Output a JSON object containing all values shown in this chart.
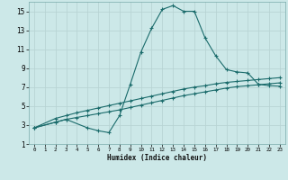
{
  "xlabel": "Humidex (Indice chaleur)",
  "bg_color": "#cce8e8",
  "grid_color": "#b8d4d4",
  "line_color": "#1a6b6b",
  "xlim": [
    -0.5,
    23.5
  ],
  "ylim": [
    1,
    16
  ],
  "xticks": [
    0,
    1,
    2,
    3,
    4,
    5,
    6,
    7,
    8,
    9,
    10,
    11,
    12,
    13,
    14,
    15,
    16,
    17,
    18,
    19,
    20,
    21,
    22,
    23
  ],
  "yticks": [
    1,
    3,
    5,
    7,
    9,
    11,
    13,
    15
  ],
  "series1_x": [
    0,
    2,
    3,
    4,
    5,
    6,
    7,
    8,
    9,
    10,
    11,
    12,
    13,
    14,
    15,
    16,
    17,
    18,
    19,
    20,
    21,
    22,
    23
  ],
  "series1_y": [
    2.7,
    3.3,
    3.6,
    3.8,
    4.0,
    4.2,
    4.4,
    4.6,
    4.85,
    5.1,
    5.35,
    5.6,
    5.85,
    6.1,
    6.3,
    6.5,
    6.7,
    6.9,
    7.05,
    7.15,
    7.25,
    7.35,
    7.45
  ],
  "series2_x": [
    0,
    2,
    3,
    4,
    5,
    6,
    7,
    8,
    9,
    10,
    11,
    12,
    13,
    14,
    15,
    16,
    17,
    18,
    19,
    20,
    21,
    22,
    23
  ],
  "series2_y": [
    2.7,
    3.7,
    4.0,
    4.3,
    4.55,
    4.8,
    5.05,
    5.3,
    5.55,
    5.8,
    6.05,
    6.3,
    6.55,
    6.8,
    7.0,
    7.15,
    7.35,
    7.5,
    7.6,
    7.7,
    7.8,
    7.9,
    8.0
  ],
  "series3_x": [
    0,
    2,
    3,
    5,
    6,
    7,
    8,
    9,
    10,
    11,
    12,
    13,
    14,
    15,
    16,
    17,
    18,
    19,
    20,
    21,
    22,
    23
  ],
  "series3_y": [
    2.7,
    3.3,
    3.6,
    2.7,
    2.4,
    2.2,
    4.0,
    7.3,
    10.7,
    13.2,
    15.2,
    15.6,
    15.0,
    15.0,
    12.2,
    10.3,
    8.85,
    8.6,
    8.5,
    7.3,
    7.15,
    7.1
  ]
}
